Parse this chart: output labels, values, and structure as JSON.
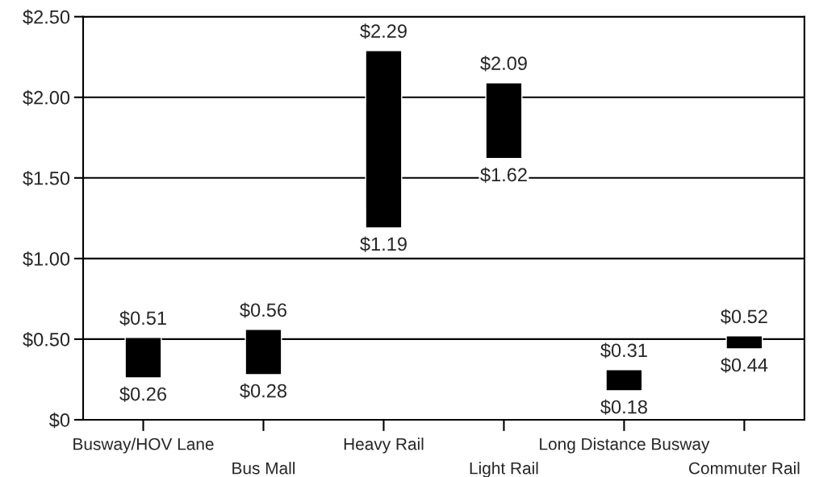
{
  "chart_data": {
    "type": "bar",
    "categories": [
      "Busway/HOV Lane",
      "Bus Mall",
      "Heavy Rail",
      "Light Rail",
      "Long Distance Busway",
      "Commuter Rail"
    ],
    "base": [
      0.26,
      0.28,
      1.19,
      1.62,
      0.18,
      0.44
    ],
    "values": [
      0.25,
      0.28,
      1.1,
      0.47,
      0.13,
      0.08
    ],
    "color": "#000000",
    "ylim": [
      0,
      2.5
    ],
    "yticks": [
      {
        "value": 0,
        "label": "$0"
      },
      {
        "value": 0.5,
        "label": "$0.50"
      },
      {
        "value": 1.0,
        "label": "$1.00"
      },
      {
        "value": 1.5,
        "label": "$1.50"
      },
      {
        "value": 2.0,
        "label": "$2.00"
      },
      {
        "value": 2.5,
        "label": "$2.50"
      }
    ],
    "grid": "y",
    "annotations": [
      {
        "text": "$0.51",
        "x": "Busway/HOV Lane",
        "y": 0.51
      },
      {
        "text": "$0.26",
        "x": "Busway/HOV Lane",
        "y": 0.26
      },
      {
        "text": "$0.56",
        "x": "Bus Mall",
        "y": 0.56
      },
      {
        "text": "$0.28",
        "x": "Bus Mall",
        "y": 0.28
      },
      {
        "text": "$2.29",
        "x": "Heavy Rail",
        "y": 2.29
      },
      {
        "text": "$1.19",
        "x": "Heavy Rail",
        "y": 1.19
      },
      {
        "text": "$2.09",
        "x": "Light Rail",
        "y": 2.09
      },
      {
        "text": "$1.62",
        "x": "Light Rail",
        "y": 1.62
      },
      {
        "text": "$0.31",
        "x": "Long Distance Busway",
        "y": 0.31
      },
      {
        "text": "$0.18",
        "x": "Long Distance Busway",
        "y": 0.18
      },
      {
        "text": "$0.52",
        "x": "Commuter Rail",
        "y": 0.52
      },
      {
        "text": "$0.44",
        "x": "Commuter Rail",
        "y": 0.44
      }
    ]
  }
}
